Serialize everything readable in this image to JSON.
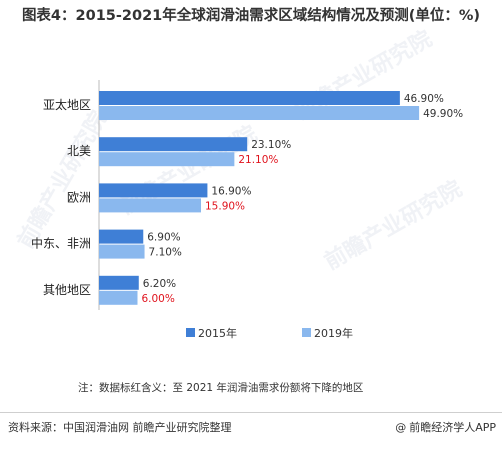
{
  "title": "图表4：2015-2021年全球润滑油需求区域结构情况及预测(单位：%)",
  "note": "注：数据标红含义：至 2021 年润滑油需求份额将下降的地区",
  "source": "资料来源：中国润滑油网 前瞻产业研究院整理",
  "credit": {
    "at_symbol": "@",
    "text": "前瞻经济学人APP"
  },
  "watermark": "前瞻产业研究院",
  "colors": {
    "series_2015": "#3f7fd6",
    "series_2019": "#8ab8ee",
    "normal_label": "#333333",
    "decline_label": "#e0141e"
  },
  "chart_data": {
    "type": "bar",
    "orientation": "horizontal",
    "categories": [
      "亚太地区",
      "北美",
      "欧洲",
      "中东、非洲",
      "其他地区"
    ],
    "series": [
      {
        "name": "2015年",
        "values": [
          46.9,
          23.1,
          16.9,
          6.9,
          6.2
        ],
        "labels": [
          "46.90%",
          "23.10%",
          "16.90%",
          "6.90%",
          "6.20%"
        ],
        "label_colors": [
          "normal",
          "normal",
          "normal",
          "normal",
          "normal"
        ]
      },
      {
        "name": "2019年",
        "values": [
          49.9,
          21.1,
          15.9,
          7.1,
          6.0
        ],
        "labels": [
          "49.90%",
          "21.10%",
          "15.90%",
          "7.10%",
          "6.00%"
        ],
        "label_colors": [
          "normal",
          "decline",
          "decline",
          "normal",
          "decline"
        ]
      }
    ],
    "xlim": [
      0,
      53
    ],
    "legend": "bottom",
    "grid": false
  }
}
